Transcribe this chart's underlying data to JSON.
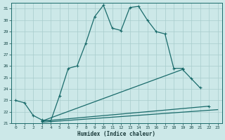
{
  "bg_color": "#cce8e8",
  "line_color": "#1a6b6b",
  "grid_color": "#a8cccc",
  "xlabel": "Humidex (Indice chaleur)",
  "xlim": [
    -0.5,
    23.5
  ],
  "ylim": [
    21,
    31.5
  ],
  "yticks": [
    21,
    22,
    23,
    24,
    25,
    26,
    27,
    28,
    29,
    30,
    31
  ],
  "xticks": [
    0,
    1,
    2,
    3,
    4,
    5,
    6,
    7,
    8,
    9,
    10,
    11,
    12,
    13,
    14,
    15,
    16,
    17,
    18,
    19,
    20,
    21,
    22,
    23
  ],
  "main_curve_x": [
    0,
    1,
    2,
    3,
    4,
    5,
    6,
    7,
    8,
    9,
    10,
    11,
    12,
    13,
    14,
    15,
    16,
    17,
    18,
    19
  ],
  "main_curve_y": [
    23.0,
    22.8,
    21.7,
    21.3,
    21.2,
    23.4,
    25.8,
    26.0,
    28.0,
    30.3,
    31.3,
    29.3,
    29.1,
    31.1,
    31.2,
    30.0,
    29.0,
    28.8,
    25.8,
    25.8
  ],
  "line1_x": [
    0,
    22
  ],
  "line1_y": [
    23.0,
    22.5
  ],
  "line2_x": [
    3,
    19,
    20,
    21
  ],
  "line2_y": [
    21.2,
    25.7,
    24.9,
    24.1
  ],
  "line3_x": [
    3,
    22
  ],
  "line3_y": [
    21.2,
    22.5
  ],
  "line4_x": [
    3,
    22
  ],
  "line4_y": [
    21.2,
    22.0
  ]
}
